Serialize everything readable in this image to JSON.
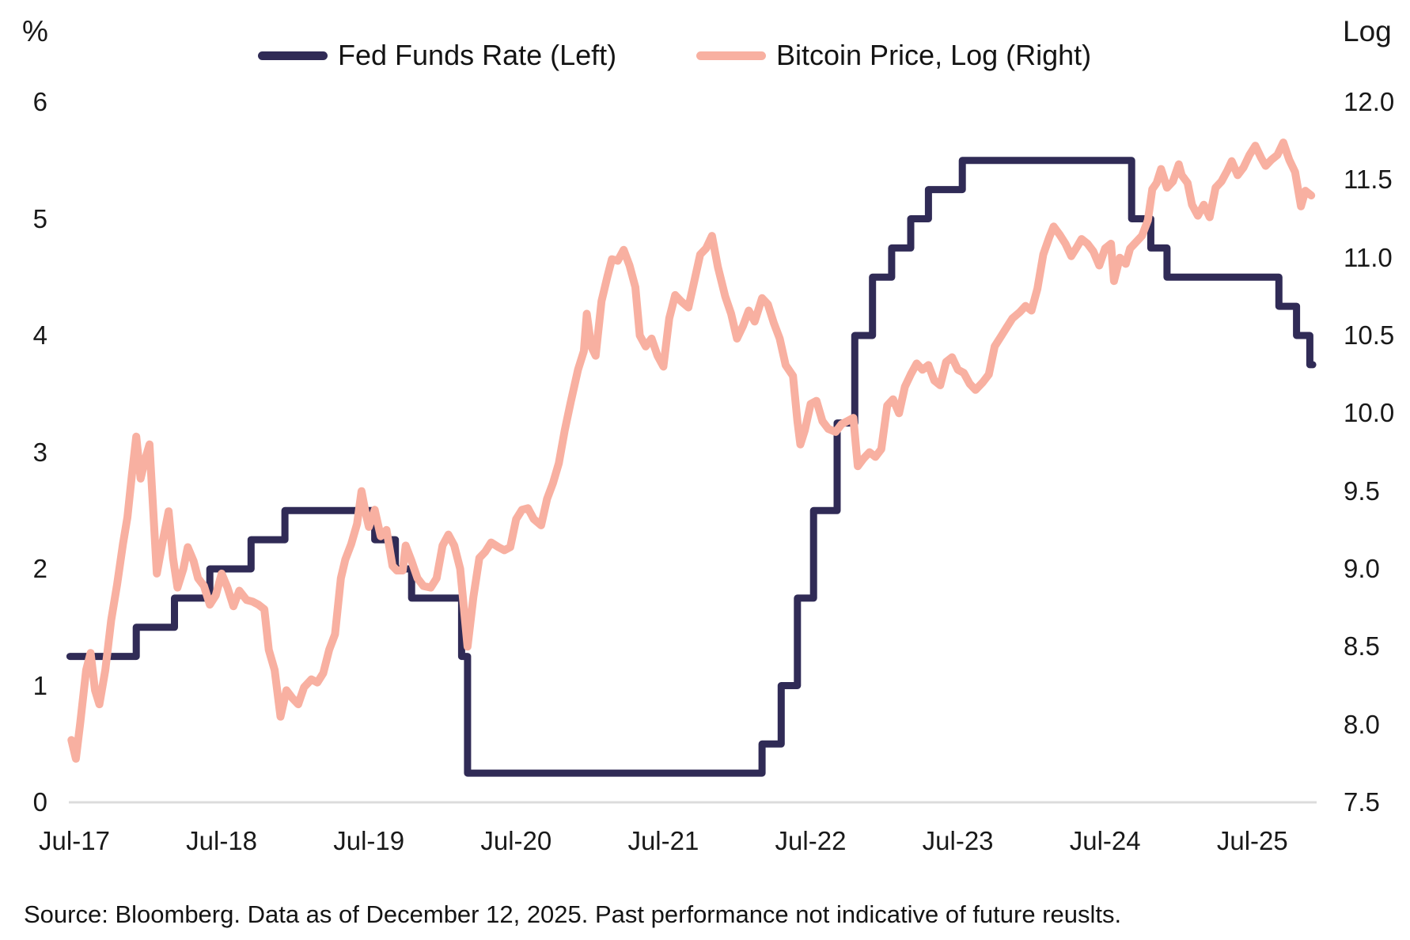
{
  "chart_data": {
    "type": "line",
    "title": "",
    "legend_position": "top",
    "grid": "baseline-only",
    "left_axis": {
      "title": "%",
      "range": [
        0,
        6
      ],
      "ticks": [
        {
          "value": 6,
          "label": "6"
        },
        {
          "value": 5,
          "label": "5"
        },
        {
          "value": 4,
          "label": "4"
        },
        {
          "value": 3,
          "label": "3"
        },
        {
          "value": 2,
          "label": "2"
        },
        {
          "value": 1,
          "label": "1"
        },
        {
          "value": 0,
          "label": "0"
        }
      ]
    },
    "right_axis": {
      "title": "Log",
      "range": [
        7.5,
        12.0
      ],
      "ticks": [
        {
          "value": 12.0,
          "label": "12.0"
        },
        {
          "value": 11.5,
          "label": "11.5"
        },
        {
          "value": 11.0,
          "label": "11.0"
        },
        {
          "value": 10.5,
          "label": "10.5"
        },
        {
          "value": 10.0,
          "label": "10.0"
        },
        {
          "value": 9.5,
          "label": "9.5"
        },
        {
          "value": 9.0,
          "label": "9.0"
        },
        {
          "value": 8.5,
          "label": "8.5"
        },
        {
          "value": 8.0,
          "label": "8.0"
        },
        {
          "value": 7.5,
          "label": "7.5"
        }
      ]
    },
    "x_axis": {
      "range": [
        2017.51,
        2025.95
      ],
      "ticks": [
        {
          "t": 2017.54,
          "label": "Jul-17"
        },
        {
          "t": 2018.54,
          "label": "Jul-18"
        },
        {
          "t": 2019.54,
          "label": "Jul-19"
        },
        {
          "t": 2020.54,
          "label": "Jul-20"
        },
        {
          "t": 2021.54,
          "label": "Jul-21"
        },
        {
          "t": 2022.54,
          "label": "Jul-22"
        },
        {
          "t": 2023.54,
          "label": "Jul-23"
        },
        {
          "t": 2024.54,
          "label": "Jul-24"
        },
        {
          "t": 2025.54,
          "label": "Jul-25"
        }
      ]
    },
    "series": [
      {
        "name": "Fed Funds Rate (Left)",
        "axis": "left",
        "type": "step",
        "color": "#302b56",
        "stroke_width": 9,
        "points": [
          [
            2017.51,
            1.25
          ],
          [
            2017.96,
            1.5
          ],
          [
            2018.22,
            1.75
          ],
          [
            2018.46,
            2.0
          ],
          [
            2018.74,
            2.25
          ],
          [
            2018.97,
            2.5
          ],
          [
            2019.58,
            2.25
          ],
          [
            2019.72,
            2.0
          ],
          [
            2019.83,
            1.75
          ],
          [
            2020.17,
            1.25
          ],
          [
            2020.21,
            0.25
          ],
          [
            2022.21,
            0.5
          ],
          [
            2022.34,
            1.0
          ],
          [
            2022.45,
            1.75
          ],
          [
            2022.56,
            2.5
          ],
          [
            2022.72,
            3.25
          ],
          [
            2022.84,
            4.0
          ],
          [
            2022.96,
            4.5
          ],
          [
            2023.09,
            4.75
          ],
          [
            2023.22,
            5.0
          ],
          [
            2023.34,
            5.25
          ],
          [
            2023.57,
            5.5
          ],
          [
            2024.72,
            5.0
          ],
          [
            2024.85,
            4.75
          ],
          [
            2024.96,
            4.5
          ],
          [
            2025.72,
            4.25
          ],
          [
            2025.84,
            4.0
          ],
          [
            2025.93,
            3.75
          ],
          [
            2025.95,
            3.75
          ]
        ]
      },
      {
        "name": "Bitcoin Price, Log (Right)",
        "axis": "right",
        "type": "line",
        "color": "#f8b0a1",
        "stroke_width": 10,
        "points": [
          [
            2017.52,
            7.9
          ],
          [
            2017.55,
            7.78
          ],
          [
            2017.58,
            8.01
          ],
          [
            2017.62,
            8.35
          ],
          [
            2017.65,
            8.46
          ],
          [
            2017.68,
            8.22
          ],
          [
            2017.71,
            8.13
          ],
          [
            2017.75,
            8.35
          ],
          [
            2017.79,
            8.67
          ],
          [
            2017.83,
            8.9
          ],
          [
            2017.87,
            9.16
          ],
          [
            2017.9,
            9.33
          ],
          [
            2017.93,
            9.6
          ],
          [
            2017.96,
            9.85
          ],
          [
            2017.99,
            9.58
          ],
          [
            2018.02,
            9.7
          ],
          [
            2018.05,
            9.8
          ],
          [
            2018.08,
            9.3
          ],
          [
            2018.1,
            8.97
          ],
          [
            2018.14,
            9.18
          ],
          [
            2018.18,
            9.37
          ],
          [
            2018.21,
            9.07
          ],
          [
            2018.24,
            8.88
          ],
          [
            2018.28,
            9.0
          ],
          [
            2018.31,
            9.14
          ],
          [
            2018.35,
            9.05
          ],
          [
            2018.38,
            8.94
          ],
          [
            2018.42,
            8.89
          ],
          [
            2018.46,
            8.77
          ],
          [
            2018.5,
            8.83
          ],
          [
            2018.54,
            8.97
          ],
          [
            2018.58,
            8.88
          ],
          [
            2018.62,
            8.76
          ],
          [
            2018.66,
            8.86
          ],
          [
            2018.71,
            8.8
          ],
          [
            2018.75,
            8.79
          ],
          [
            2018.79,
            8.77
          ],
          [
            2018.83,
            8.74
          ],
          [
            2018.86,
            8.48
          ],
          [
            2018.9,
            8.35
          ],
          [
            2018.94,
            8.05
          ],
          [
            2018.98,
            8.22
          ],
          [
            2019.02,
            8.17
          ],
          [
            2019.06,
            8.13
          ],
          [
            2019.1,
            8.24
          ],
          [
            2019.15,
            8.29
          ],
          [
            2019.19,
            8.27
          ],
          [
            2019.23,
            8.33
          ],
          [
            2019.27,
            8.48
          ],
          [
            2019.31,
            8.58
          ],
          [
            2019.35,
            8.94
          ],
          [
            2019.38,
            9.06
          ],
          [
            2019.42,
            9.16
          ],
          [
            2019.46,
            9.29
          ],
          [
            2019.49,
            9.5
          ],
          [
            2019.52,
            9.35
          ],
          [
            2019.54,
            9.27
          ],
          [
            2019.58,
            9.38
          ],
          [
            2019.62,
            9.21
          ],
          [
            2019.66,
            9.25
          ],
          [
            2019.7,
            9.02
          ],
          [
            2019.73,
            8.99
          ],
          [
            2019.77,
            8.99
          ],
          [
            2019.79,
            9.15
          ],
          [
            2019.83,
            9.05
          ],
          [
            2019.87,
            8.94
          ],
          [
            2019.91,
            8.89
          ],
          [
            2019.96,
            8.88
          ],
          [
            2020.0,
            8.94
          ],
          [
            2020.04,
            9.15
          ],
          [
            2020.08,
            9.22
          ],
          [
            2020.12,
            9.15
          ],
          [
            2020.16,
            9.0
          ],
          [
            2020.21,
            8.5
          ],
          [
            2020.25,
            8.82
          ],
          [
            2020.29,
            9.07
          ],
          [
            2020.33,
            9.11
          ],
          [
            2020.37,
            9.17
          ],
          [
            2020.42,
            9.14
          ],
          [
            2020.46,
            9.12
          ],
          [
            2020.5,
            9.14
          ],
          [
            2020.54,
            9.32
          ],
          [
            2020.58,
            9.38
          ],
          [
            2020.62,
            9.39
          ],
          [
            2020.66,
            9.32
          ],
          [
            2020.71,
            9.28
          ],
          [
            2020.75,
            9.45
          ],
          [
            2020.79,
            9.55
          ],
          [
            2020.83,
            9.68
          ],
          [
            2020.87,
            9.89
          ],
          [
            2020.91,
            10.07
          ],
          [
            2020.96,
            10.28
          ],
          [
            2021.0,
            10.4
          ],
          [
            2021.02,
            10.64
          ],
          [
            2021.05,
            10.43
          ],
          [
            2021.08,
            10.37
          ],
          [
            2021.12,
            10.72
          ],
          [
            2021.16,
            10.88
          ],
          [
            2021.19,
            10.99
          ],
          [
            2021.23,
            10.98
          ],
          [
            2021.27,
            11.05
          ],
          [
            2021.31,
            10.95
          ],
          [
            2021.35,
            10.81
          ],
          [
            2021.38,
            10.5
          ],
          [
            2021.42,
            10.43
          ],
          [
            2021.46,
            10.48
          ],
          [
            2021.5,
            10.37
          ],
          [
            2021.54,
            10.3
          ],
          [
            2021.58,
            10.61
          ],
          [
            2021.62,
            10.76
          ],
          [
            2021.66,
            10.72
          ],
          [
            2021.71,
            10.68
          ],
          [
            2021.75,
            10.85
          ],
          [
            2021.79,
            11.02
          ],
          [
            2021.83,
            11.06
          ],
          [
            2021.87,
            11.14
          ],
          [
            2021.91,
            10.94
          ],
          [
            2021.96,
            10.75
          ],
          [
            2022.0,
            10.64
          ],
          [
            2022.04,
            10.48
          ],
          [
            2022.08,
            10.56
          ],
          [
            2022.12,
            10.66
          ],
          [
            2022.16,
            10.59
          ],
          [
            2022.21,
            10.74
          ],
          [
            2022.25,
            10.7
          ],
          [
            2022.29,
            10.58
          ],
          [
            2022.33,
            10.48
          ],
          [
            2022.37,
            10.31
          ],
          [
            2022.42,
            10.24
          ],
          [
            2022.45,
            9.95
          ],
          [
            2022.47,
            9.8
          ],
          [
            2022.5,
            9.89
          ],
          [
            2022.54,
            10.06
          ],
          [
            2022.58,
            10.08
          ],
          [
            2022.62,
            9.95
          ],
          [
            2022.66,
            9.9
          ],
          [
            2022.71,
            9.88
          ],
          [
            2022.75,
            9.93
          ],
          [
            2022.79,
            9.95
          ],
          [
            2022.83,
            9.97
          ],
          [
            2022.86,
            9.66
          ],
          [
            2022.9,
            9.71
          ],
          [
            2022.94,
            9.75
          ],
          [
            2022.98,
            9.72
          ],
          [
            2023.02,
            9.77
          ],
          [
            2023.06,
            10.05
          ],
          [
            2023.1,
            10.09
          ],
          [
            2023.14,
            10.0
          ],
          [
            2023.18,
            10.17
          ],
          [
            2023.22,
            10.25
          ],
          [
            2023.26,
            10.32
          ],
          [
            2023.3,
            10.28
          ],
          [
            2023.34,
            10.31
          ],
          [
            2023.38,
            10.21
          ],
          [
            2023.42,
            10.18
          ],
          [
            2023.46,
            10.33
          ],
          [
            2023.5,
            10.36
          ],
          [
            2023.54,
            10.28
          ],
          [
            2023.58,
            10.26
          ],
          [
            2023.62,
            10.19
          ],
          [
            2023.66,
            10.15
          ],
          [
            2023.71,
            10.2
          ],
          [
            2023.75,
            10.25
          ],
          [
            2023.79,
            10.43
          ],
          [
            2023.83,
            10.49
          ],
          [
            2023.87,
            10.55
          ],
          [
            2023.91,
            10.61
          ],
          [
            2023.96,
            10.65
          ],
          [
            2024.0,
            10.69
          ],
          [
            2024.04,
            10.66
          ],
          [
            2024.08,
            10.8
          ],
          [
            2024.12,
            11.02
          ],
          [
            2024.16,
            11.13
          ],
          [
            2024.19,
            11.2
          ],
          [
            2024.23,
            11.15
          ],
          [
            2024.27,
            11.09
          ],
          [
            2024.31,
            11.01
          ],
          [
            2024.35,
            11.07
          ],
          [
            2024.38,
            11.12
          ],
          [
            2024.42,
            11.09
          ],
          [
            2024.46,
            11.04
          ],
          [
            2024.5,
            10.95
          ],
          [
            2024.54,
            11.06
          ],
          [
            2024.58,
            11.09
          ],
          [
            2024.6,
            10.85
          ],
          [
            2024.64,
            11.0
          ],
          [
            2024.68,
            10.96
          ],
          [
            2024.71,
            11.06
          ],
          [
            2024.75,
            11.1
          ],
          [
            2024.79,
            11.14
          ],
          [
            2024.83,
            11.24
          ],
          [
            2024.86,
            11.44
          ],
          [
            2024.89,
            11.48
          ],
          [
            2024.92,
            11.57
          ],
          [
            2024.96,
            11.45
          ],
          [
            2025.0,
            11.49
          ],
          [
            2025.04,
            11.6
          ],
          [
            2025.06,
            11.53
          ],
          [
            2025.1,
            11.48
          ],
          [
            2025.13,
            11.34
          ],
          [
            2025.17,
            11.27
          ],
          [
            2025.21,
            11.34
          ],
          [
            2025.25,
            11.26
          ],
          [
            2025.29,
            11.45
          ],
          [
            2025.33,
            11.49
          ],
          [
            2025.37,
            11.56
          ],
          [
            2025.4,
            11.62
          ],
          [
            2025.44,
            11.53
          ],
          [
            2025.48,
            11.58
          ],
          [
            2025.52,
            11.66
          ],
          [
            2025.56,
            11.72
          ],
          [
            2025.6,
            11.64
          ],
          [
            2025.63,
            11.59
          ],
          [
            2025.67,
            11.63
          ],
          [
            2025.71,
            11.66
          ],
          [
            2025.75,
            11.74
          ],
          [
            2025.79,
            11.63
          ],
          [
            2025.83,
            11.55
          ],
          [
            2025.87,
            11.33
          ],
          [
            2025.9,
            11.43
          ],
          [
            2025.94,
            11.4
          ]
        ]
      }
    ],
    "baseline_color": "#dcdcdc",
    "source": "Source: Bloomberg. Data as of December 12, 2025. Past performance not indicative of future reuslts."
  }
}
